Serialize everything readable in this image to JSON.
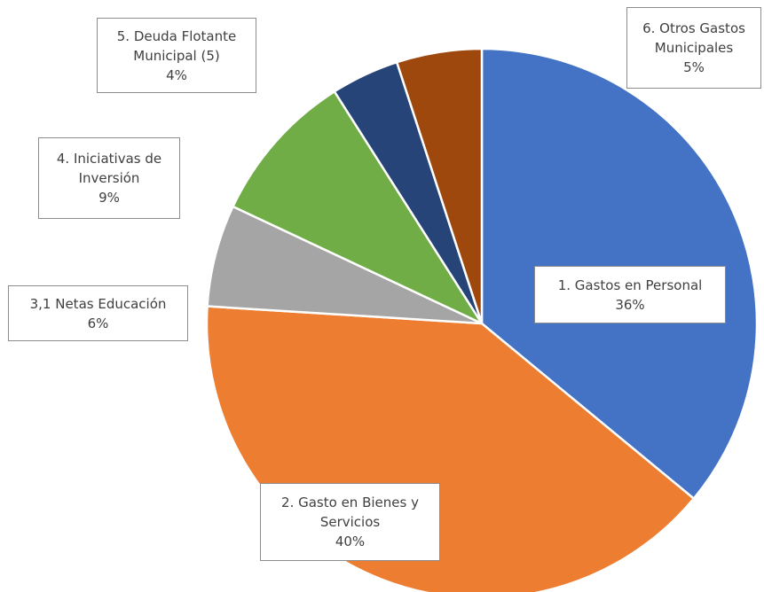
{
  "chart_data": {
    "type": "pie",
    "categories": [
      "1. Gastos en Personal",
      "2. Gasto en Bienes y Servicios",
      "3,1 Netas Educación",
      "4. Iniciativas de Inversión",
      "5. Deuda Flotante Municipal (5)",
      "6. Otros Gastos Municipales"
    ],
    "values": [
      36,
      40,
      6,
      9,
      4,
      5
    ],
    "value_labels": [
      "36%",
      "40%",
      "6%",
      "9%",
      "4%",
      "5%"
    ],
    "colors": [
      "#4472c4",
      "#ed7d31",
      "#a5a5a5",
      "#70ad47",
      "#264478",
      "#9e480e"
    ]
  }
}
